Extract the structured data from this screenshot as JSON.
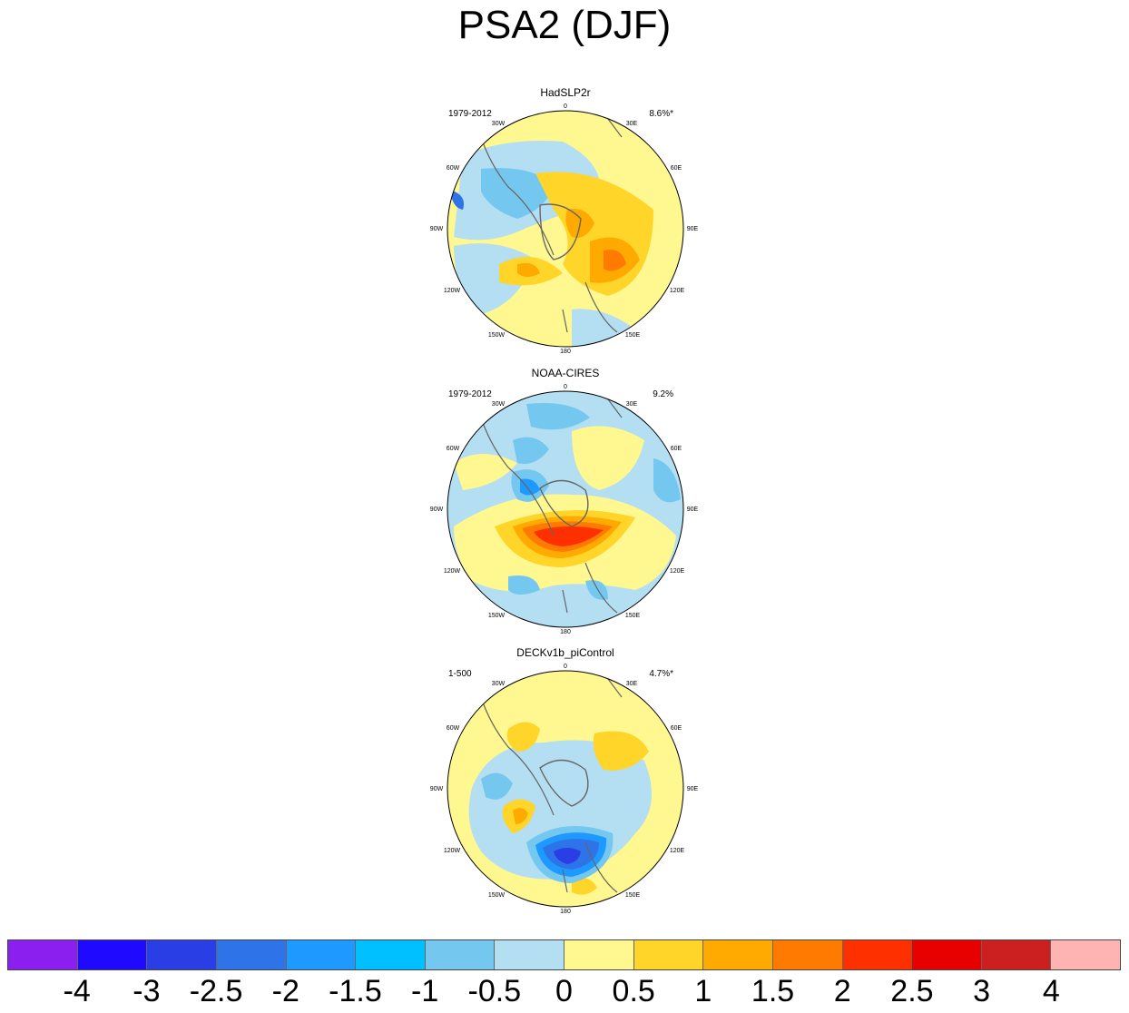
{
  "title": "PSA2 (DJF)",
  "panels": [
    {
      "title": "HadSLP2r",
      "period": "1979-2012",
      "variance": "8.6%*"
    },
    {
      "title": "NOAA-CIRES",
      "period": "1979-2012",
      "variance": "9.2%"
    },
    {
      "title": "DECKv1b_piControl",
      "period": "1-500",
      "variance": "4.7%*"
    }
  ],
  "longitude_labels": {
    "l0": "0",
    "l30e": "30E",
    "l60e": "60E",
    "l90e": "90E",
    "l120e": "120E",
    "l150e": "150E",
    "l180": "180",
    "l150w": "150W",
    "l120w": "120W",
    "l90w": "90W",
    "l60w": "60W",
    "l30w": "30W"
  },
  "colorbar": {
    "colors": [
      "#8a1ff0",
      "#1f0aff",
      "#2a3ee6",
      "#2f73e8",
      "#1e99ff",
      "#00c0ff",
      "#74c8f0",
      "#b4def2",
      "#fff78f",
      "#ffd52a",
      "#ffaa00",
      "#ff7a00",
      "#ff3000",
      "#e80000",
      "#cc1f1f",
      "#ffb4b4"
    ],
    "labels": [
      "-4",
      "-3",
      "-2.5",
      "-2",
      "-1.5",
      "-1",
      "-0.5",
      "0",
      "0.5",
      "1",
      "1.5",
      "2",
      "2.5",
      "3",
      "4"
    ]
  },
  "palette": {
    "ocean_neg1": "#b4def2",
    "pos1": "#fff78f"
  }
}
